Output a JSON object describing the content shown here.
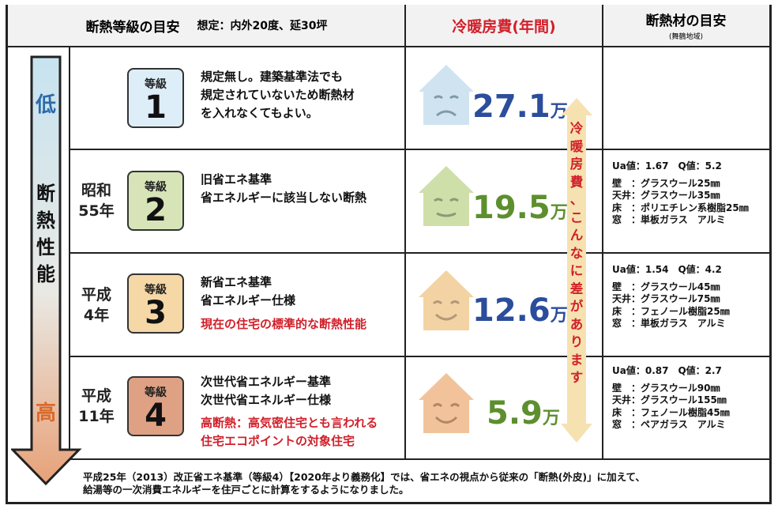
{
  "header": {
    "title": "断熱等級の目安",
    "assumption": "想定：内外20度、延30坪",
    "cost_title": "冷暖房費(年間)",
    "material_title": "断熱材の目安",
    "material_region": "(舞鶴地域)"
  },
  "arrow": {
    "low": "低",
    "performance_chars": [
      "断",
      "熱",
      "性",
      "能"
    ],
    "high": "高"
  },
  "rows": [
    {
      "era_lines": [],
      "grade_label": "等級",
      "grade_number": "1",
      "desc_lines": [
        "規定無し。建築基準法でも",
        "規定されていないため断熱材",
        "を入れなくてもよい。"
      ],
      "red_lines": [],
      "cost_number": "27.1",
      "cost_unit": "万",
      "material": null
    },
    {
      "era_lines": [
        "昭和",
        "55年"
      ],
      "grade_label": "等級",
      "grade_number": "2",
      "desc_lines": [
        "旧省エネ基準",
        "省エネルギーに該当しない断熱"
      ],
      "red_lines": [],
      "cost_number": "19.5",
      "cost_unit": "万",
      "material": {
        "ua": "Ua値：1.67　Q値：5.2",
        "lines": [
          "壁　：グラスウール25㎜",
          "天井：グラスウール35㎜",
          "床　：ポリエチレン系樹脂25㎜",
          "窓　：単板ガラス　アルミ"
        ]
      }
    },
    {
      "era_lines": [
        "平成",
        "4年"
      ],
      "grade_label": "等級",
      "grade_number": "3",
      "desc_lines": [
        "新省エネ基準",
        "省エネルギー仕様"
      ],
      "red_lines": [
        "現在の住宅の標準的な断熱性能"
      ],
      "cost_number": "12.6",
      "cost_unit": "万",
      "material": {
        "ua": "Ua値：1.54　Q値：4.2",
        "lines": [
          "壁　：グラスウール45㎜",
          "天井：グラスウール75㎜",
          "床　：フェノール樹脂25㎜",
          "窓　：単板ガラス　アルミ"
        ]
      }
    },
    {
      "era_lines": [
        "平成",
        "11年"
      ],
      "grade_label": "等級",
      "grade_number": "4",
      "desc_lines": [
        "次世代省エネルギー基準",
        "次世代省エネルギー仕様"
      ],
      "red_lines": [
        "高断熱：高気密住宅とも言われる",
        "住宅エコポイントの対象住宅"
      ],
      "cost_number": "5.9",
      "cost_unit": "万",
      "material": {
        "ua": "Ua値：0.87　Q値：2.7",
        "lines": [
          "壁　：グラスウール90㎜",
          "天井：グラスウール155㎜",
          "床　：フェノール樹脂45㎜",
          "窓　：ペアガラス　アルミ"
        ]
      }
    }
  ],
  "callout": [
    "冷",
    "暖",
    "房",
    "費",
    "、",
    "こ",
    "ん",
    "な",
    "に",
    "差",
    "が",
    "あ",
    "り",
    "ま",
    "す"
  ],
  "footer": [
    "平成25年（2013）改正省エネ基準（等級4）【2020年より義務化】では、省エネの視点から従来の「断熱(外皮)」に加えて、",
    "給湯等の一次消費エネルギーを住戸ごとに計算をするようになりました。"
  ],
  "colors": {
    "grade_fills": [
      "#ddeef8",
      "#d6e4b8",
      "#f6d7a6",
      "#dfa184"
    ],
    "house_fills": [
      "#cfe4f0",
      "#cfdfa9",
      "#f3d3a4",
      "#f2c39b"
    ],
    "cost_colors": [
      "#2b4d9c",
      "#5d8f2e",
      "#2b4d9c",
      "#5d8f2e"
    ],
    "arrow_top": "#c7e3f0",
    "arrow_bottom": "#e7a178",
    "callout_fill": "#f6e1b0",
    "red_text": "#d1202a"
  }
}
